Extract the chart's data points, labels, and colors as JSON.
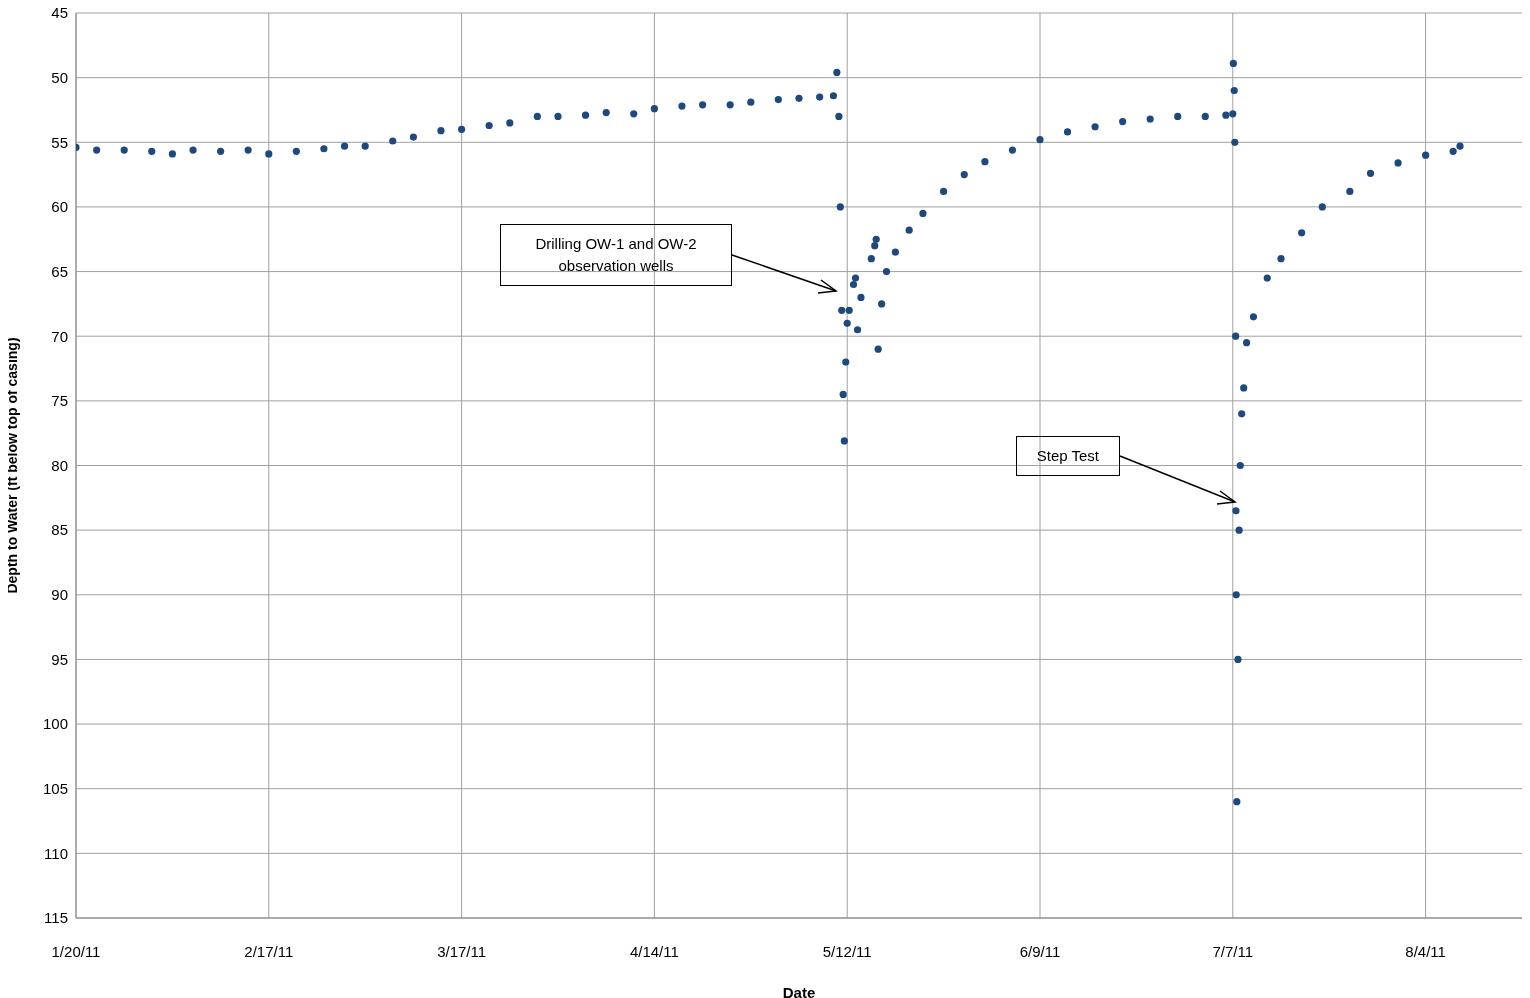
{
  "chart_data": {
    "type": "scatter",
    "xlabel": "Date",
    "ylabel": "Depth to Water (ft below top of casing)",
    "xlim": [
      "2011-01-20",
      "2011-08-18"
    ],
    "xticks": [
      {
        "value": "2011-01-20",
        "label": "1/20/11"
      },
      {
        "value": "2011-02-17",
        "label": "2/17/11"
      },
      {
        "value": "2011-03-17",
        "label": "3/17/11"
      },
      {
        "value": "2011-04-14",
        "label": "4/14/11"
      },
      {
        "value": "2011-05-12",
        "label": "5/12/11"
      },
      {
        "value": "2011-06-09",
        "label": "6/9/11"
      },
      {
        "value": "2011-07-07",
        "label": "7/7/11"
      },
      {
        "value": "2011-08-04",
        "label": "8/4/11"
      }
    ],
    "ylim": [
      115,
      45
    ],
    "yticks": [
      45,
      50,
      55,
      60,
      65,
      70,
      75,
      80,
      85,
      90,
      95,
      100,
      105,
      110,
      115
    ],
    "grid": true,
    "marker": "circle",
    "x": [
      "2011-01-20",
      "2011-01-23",
      "2011-01-27",
      "2011-01-31",
      "2011-02-03",
      "2011-02-06",
      "2011-02-10",
      "2011-02-14",
      "2011-02-17",
      "2011-02-21",
      "2011-02-25",
      "2011-02-28",
      "2011-03-03",
      "2011-03-07",
      "2011-03-10",
      "2011-03-14",
      "2011-03-17",
      "2011-03-21",
      "2011-03-24",
      "2011-03-28",
      "2011-03-31",
      "2011-04-04",
      "2011-04-07",
      "2011-04-11",
      "2011-04-14",
      "2011-04-18",
      "2011-04-21",
      "2011-04-25",
      "2011-04-28",
      "2011-05-02",
      "2011-05-05",
      "2011-05-08",
      "2011-05-10",
      "2011-05-10T12:00",
      "2011-05-10T19:00",
      "2011-05-11T00:00",
      "2011-05-11T05:00",
      "2011-05-11T10:00",
      "2011-05-11T14:00",
      "2011-05-11T19:00",
      "2011-05-12T00:00",
      "2011-05-12T07:00",
      "2011-05-12T22:00",
      "2011-05-13T05:00",
      "2011-05-13T12:00",
      "2011-05-14",
      "2011-05-15T12:00",
      "2011-05-16T00:00",
      "2011-05-16T05:00",
      "2011-05-16T12:00",
      "2011-05-17",
      "2011-05-17T17:00",
      "2011-05-19",
      "2011-05-21",
      "2011-05-23",
      "2011-05-26",
      "2011-05-29",
      "2011-06-01",
      "2011-06-05",
      "2011-06-09",
      "2011-06-13",
      "2011-06-17",
      "2011-06-21",
      "2011-06-25",
      "2011-06-29",
      "2011-07-03",
      "2011-07-06",
      "2011-07-07T00:00",
      "2011-07-07T02:00",
      "2011-07-07T05:00",
      "2011-07-07T07:00",
      "2011-07-07T10:00",
      "2011-07-07T11:00",
      "2011-07-07T12:00",
      "2011-07-07T14:00",
      "2011-07-07T18:00",
      "2011-07-07T22:00",
      "2011-07-08T02:00",
      "2011-07-08T07:00",
      "2011-07-08T14:00",
      "2011-07-09",
      "2011-07-10",
      "2011-07-12",
      "2011-07-14",
      "2011-07-17",
      "2011-07-20",
      "2011-07-24",
      "2011-07-27",
      "2011-07-31",
      "2011-08-04",
      "2011-08-08",
      "2011-08-09"
    ],
    "series": [
      {
        "color": "#1f497d",
        "values": [
          55.4,
          55.6,
          55.6,
          55.7,
          55.9,
          55.6,
          55.7,
          55.6,
          55.9,
          55.7,
          55.5,
          55.3,
          55.3,
          54.9,
          54.6,
          54.1,
          54.0,
          53.7,
          53.5,
          53.0,
          53.0,
          52.9,
          52.7,
          52.8,
          52.4,
          52.2,
          52.1,
          52.1,
          51.9,
          51.7,
          51.6,
          51.5,
          51.4,
          49.6,
          53,
          60,
          68,
          74.5,
          78.1,
          72,
          69,
          68,
          66,
          65.5,
          69.5,
          67,
          64,
          63,
          62.5,
          71,
          67.5,
          65,
          63.5,
          61.8,
          60.5,
          58.8,
          57.5,
          56.5,
          55.6,
          54.8,
          54.2,
          53.8,
          53.4,
          53.2,
          53.0,
          53.0,
          52.9,
          52.8,
          48.9,
          51,
          55,
          70,
          83.5,
          90,
          106,
          95,
          85,
          80,
          76,
          74,
          70.5,
          68.5,
          65.5,
          64,
          62,
          60,
          58.8,
          57.4,
          56.6,
          56,
          55.7,
          55.3
        ]
      }
    ],
    "annotations": [
      "Drilling OW-1 and OW-2 observation wells",
      "Step Test"
    ]
  }
}
